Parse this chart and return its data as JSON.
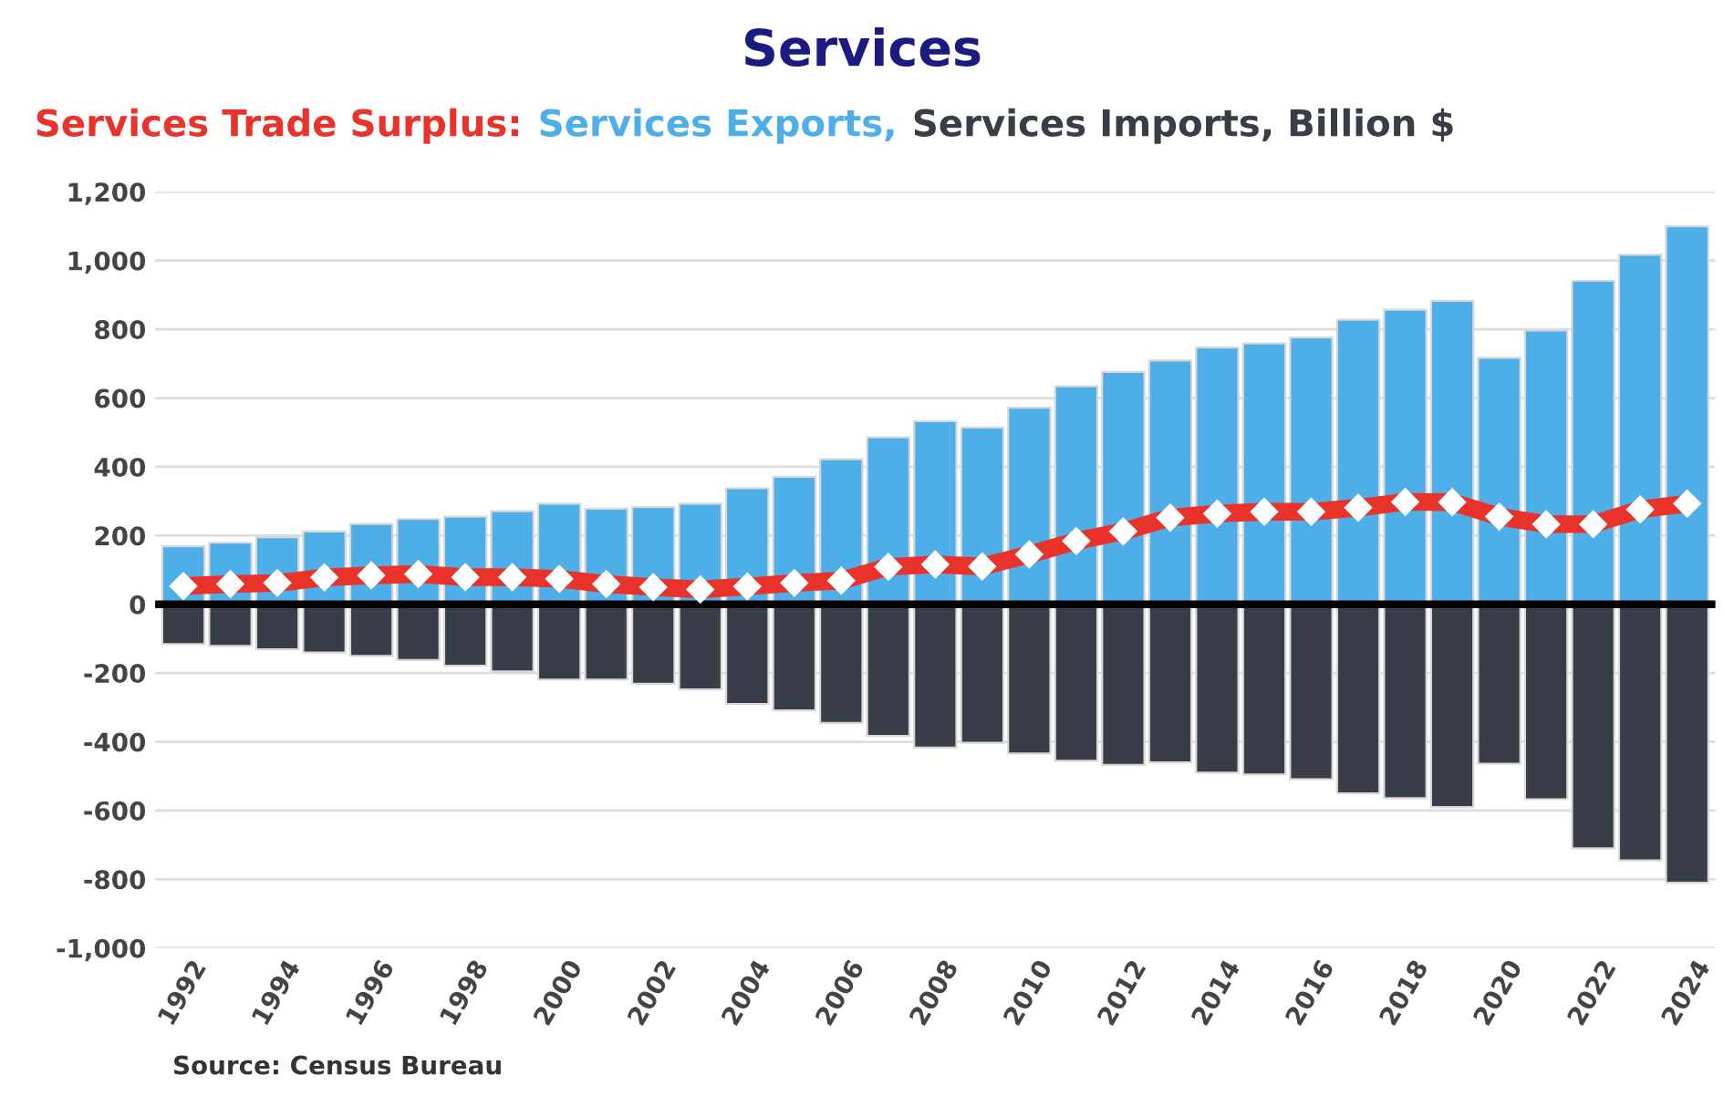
{
  "chart_data": {
    "type": "bar",
    "title": "Services",
    "categories": [
      "1992",
      null,
      "1994",
      null,
      "1996",
      null,
      "1998",
      null,
      "2000",
      null,
      "2002",
      null,
      "2004",
      null,
      "2006",
      null,
      "2008",
      null,
      "2010",
      null,
      "2012",
      null,
      "2014",
      null,
      "2016",
      null,
      "2018",
      null,
      "2020",
      null,
      "2022",
      null,
      "2024"
    ],
    "stacked": true,
    "series": [
      {
        "name": "Services Trade Surplus:",
        "color": "#e8322a",
        "type": "line",
        "marker": "diamond",
        "values": [
          53,
          59,
          62,
          78,
          84,
          88,
          79,
          79,
          74,
          59,
          50,
          43,
          52,
          62,
          69,
          109,
          116,
          110,
          145,
          184,
          212,
          252,
          264,
          269,
          269,
          281,
          298,
          297,
          255,
          233,
          233,
          276,
          293
        ]
      },
      {
        "name": "Services Exports,",
        "color": "#4daee8",
        "values": [
          169,
          179,
          195,
          212,
          234,
          248,
          255,
          271,
          293,
          278,
          283,
          293,
          338,
          371,
          422,
          486,
          533,
          514,
          572,
          634,
          676,
          709,
          747,
          759,
          776,
          828,
          857,
          883,
          717,
          797,
          941,
          1017,
          1100
        ]
      },
      {
        "name": "Services Imports, Billion $",
        "color": "#383d47",
        "values": [
          -116,
          -121,
          -131,
          -140,
          -150,
          -162,
          -179,
          -195,
          -219,
          -219,
          -231,
          -248,
          -290,
          -309,
          -345,
          -383,
          -417,
          -403,
          -434,
          -455,
          -467,
          -460,
          -490,
          -495,
          -509,
          -550,
          -564,
          -590,
          -464,
          -567,
          -710,
          -745,
          -810
        ]
      }
    ],
    "ylim": [
      -1000,
      1200
    ],
    "yticks": [
      {
        "value": -1000,
        "label": "-1,000"
      },
      {
        "value": -800,
        "label": "-800"
      },
      {
        "value": -600,
        "label": "-600"
      },
      {
        "value": -400,
        "label": "-400"
      },
      {
        "value": -200,
        "label": "-200"
      },
      0,
      200,
      400,
      600,
      800,
      {
        "value": 1000,
        "label": "1,000"
      },
      {
        "value": 1200,
        "label": "1,200"
      }
    ],
    "grid": "y",
    "legend": "top",
    "ref_lines": [
      {
        "axis": "y",
        "value": 0,
        "color": "#000000"
      }
    ],
    "annotations": [
      "Source: Census Bureau"
    ]
  }
}
